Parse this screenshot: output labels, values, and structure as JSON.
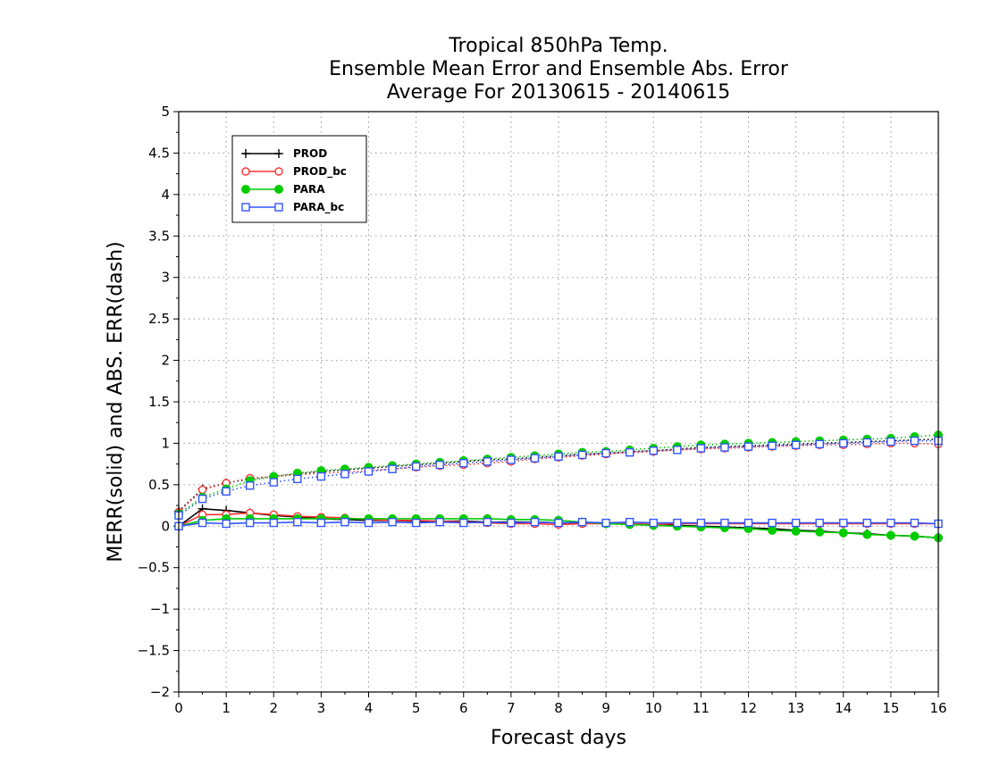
{
  "chart_data": {
    "type": "line",
    "title_lines": [
      "Tropical 850hPa Temp.",
      "Ensemble Mean Error and Ensemble Abs. Error",
      "Average For 20130615 - 20140615"
    ],
    "xlabel": "Forecast days",
    "ylabel": "MERR(solid) and ABS. ERR(dash)",
    "xlim": [
      0,
      16
    ],
    "ylim": [
      -2,
      5
    ],
    "x_ticks": [
      "0",
      "1",
      "2",
      "3",
      "4",
      "5",
      "6",
      "7",
      "8",
      "9",
      "10",
      "11",
      "12",
      "13",
      "14",
      "15",
      "16"
    ],
    "y_ticks": [
      "5",
      "4.5",
      "4",
      "3.5",
      "3",
      "2.5",
      "2",
      "1.5",
      "1",
      "0.5",
      "0",
      "−0.5",
      "−1",
      "−1.5",
      "−2"
    ],
    "grid": true,
    "legend_position": "top-left",
    "x": [
      0,
      0.5,
      1,
      1.5,
      2,
      2.5,
      3,
      3.5,
      4,
      4.5,
      5,
      5.5,
      6,
      6.5,
      7,
      7.5,
      8,
      8.5,
      9,
      9.5,
      10,
      10.5,
      11,
      11.5,
      12,
      12.5,
      13,
      13.5,
      14,
      14.5,
      15,
      15.5,
      16
    ],
    "series": [
      {
        "name": "PROD",
        "color": "#000000",
        "marker": "plus",
        "merr": [
          0,
          0.21,
          0.19,
          0.16,
          0.13,
          0.11,
          0.09,
          0.08,
          0.07,
          0.07,
          0.06,
          0.06,
          0.06,
          0.05,
          0.05,
          0.05,
          0.04,
          0.04,
          0.03,
          0.03,
          0.02,
          0.01,
          0.0,
          -0.01,
          -0.02,
          -0.03,
          -0.05,
          -0.06,
          -0.08,
          -0.09,
          -0.11,
          -0.12,
          -0.14
        ],
        "abs_err": [
          0.18,
          0.45,
          0.52,
          0.57,
          0.6,
          0.63,
          0.66,
          0.68,
          0.7,
          0.72,
          0.74,
          0.76,
          0.78,
          0.8,
          0.81,
          0.83,
          0.85,
          0.87,
          0.88,
          0.9,
          0.91,
          0.93,
          0.95,
          0.96,
          0.97,
          0.98,
          0.99,
          1.0,
          1.01,
          1.02,
          1.03,
          1.04,
          1.05
        ]
      },
      {
        "name": "PROD_bc",
        "color": "#ff3333",
        "marker": "open-circle",
        "merr": [
          0,
          0.14,
          0.14,
          0.16,
          0.14,
          0.12,
          0.11,
          0.1,
          0.08,
          0.07,
          0.07,
          0.06,
          0.05,
          0.04,
          0.03,
          0.03,
          0.02,
          0.03,
          0.03,
          0.03,
          0.02,
          0.03,
          0.03,
          0.03,
          0.03,
          0.03,
          0.03,
          0.03,
          0.03,
          0.03,
          0.03,
          0.03,
          0.03
        ],
        "abs_err": [
          0.17,
          0.44,
          0.52,
          0.58,
          0.6,
          0.62,
          0.64,
          0.65,
          0.67,
          0.69,
          0.71,
          0.73,
          0.74,
          0.76,
          0.78,
          0.81,
          0.83,
          0.85,
          0.87,
          0.89,
          0.9,
          0.92,
          0.93,
          0.94,
          0.95,
          0.96,
          0.97,
          0.98,
          0.98,
          0.99,
          1.0,
          1.0,
          0.99
        ]
      },
      {
        "name": "PARA",
        "color": "#00cc00",
        "marker": "filled-circle",
        "merr": [
          0,
          0.07,
          0.09,
          0.09,
          0.09,
          0.09,
          0.09,
          0.09,
          0.09,
          0.09,
          0.09,
          0.09,
          0.09,
          0.09,
          0.08,
          0.08,
          0.07,
          0.05,
          0.03,
          0.02,
          0.01,
          0.0,
          -0.01,
          -0.02,
          -0.03,
          -0.05,
          -0.06,
          -0.07,
          -0.08,
          -0.1,
          -0.11,
          -0.12,
          -0.14
        ],
        "abs_err": [
          0.15,
          0.35,
          0.45,
          0.55,
          0.6,
          0.64,
          0.67,
          0.69,
          0.71,
          0.73,
          0.75,
          0.77,
          0.79,
          0.81,
          0.83,
          0.85,
          0.87,
          0.89,
          0.9,
          0.92,
          0.94,
          0.96,
          0.98,
          0.99,
          1.0,
          1.01,
          1.02,
          1.03,
          1.04,
          1.05,
          1.06,
          1.08,
          1.1
        ]
      },
      {
        "name": "PARA_bc",
        "color": "#3355ff",
        "marker": "open-square",
        "merr": [
          0,
          0.04,
          0.03,
          0.04,
          0.04,
          0.05,
          0.04,
          0.05,
          0.04,
          0.05,
          0.04,
          0.05,
          0.04,
          0.05,
          0.04,
          0.05,
          0.04,
          0.05,
          0.04,
          0.05,
          0.04,
          0.04,
          0.04,
          0.04,
          0.04,
          0.04,
          0.04,
          0.04,
          0.04,
          0.04,
          0.04,
          0.04,
          0.03
        ],
        "abs_err": [
          0.13,
          0.33,
          0.42,
          0.49,
          0.53,
          0.57,
          0.6,
          0.63,
          0.66,
          0.69,
          0.72,
          0.74,
          0.76,
          0.78,
          0.8,
          0.82,
          0.84,
          0.86,
          0.88,
          0.89,
          0.91,
          0.92,
          0.94,
          0.95,
          0.96,
          0.97,
          0.98,
          0.99,
          1.0,
          1.01,
          1.02,
          1.03,
          1.03
        ]
      }
    ]
  }
}
